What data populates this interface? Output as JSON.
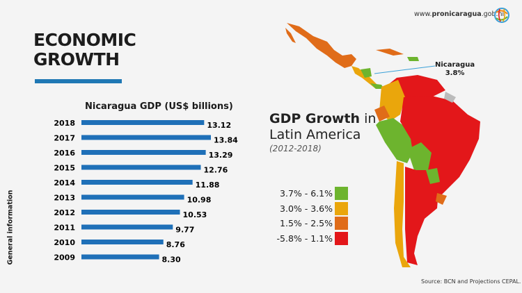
{
  "header": {
    "url_prefix": "www.",
    "url_bold": "pronicaragua",
    "url_suffix": ".gob.ni",
    "logo": "globe-logo-icon"
  },
  "title": {
    "line1": "ECONOMIC",
    "line2": "GROWTH"
  },
  "side_label": "General information",
  "chart_data": {
    "type": "bar",
    "orientation": "horizontal",
    "title": "Nicaragua GDP (US$ billions)",
    "categories": [
      "2018",
      "2017",
      "2016",
      "2015",
      "2014",
      "2013",
      "2012",
      "2011",
      "2010",
      "2009"
    ],
    "values": [
      13.12,
      13.84,
      13.29,
      12.76,
      11.88,
      10.98,
      10.53,
      9.77,
      8.76,
      8.3
    ],
    "labels": [
      "13.12",
      "13.84",
      "13.29",
      "12.76",
      "11.88",
      "10.98",
      "10.53",
      "9.77",
      "8.76",
      "8.30"
    ],
    "xlim": [
      0,
      15
    ],
    "grid": false,
    "bar_color": "#1f70b8"
  },
  "map": {
    "title_bold": "GDP Growth",
    "title_rest": " in",
    "title_line2": "Latin America",
    "years": "(2012-2018)",
    "callout_name": "Nicaragua",
    "callout_value": "3.8%",
    "legend": [
      {
        "label": "3.7% - 6.1%",
        "color": "#6db42e"
      },
      {
        "label": "3.0% - 3.6%",
        "color": "#eaa60c"
      },
      {
        "label": "1.5% - 2.5%",
        "color": "#e06c19"
      },
      {
        "label": "-5.8% - 1.1%",
        "color": "#e3171a"
      }
    ]
  },
  "source": "Source: BCN and Projections CEPAL."
}
